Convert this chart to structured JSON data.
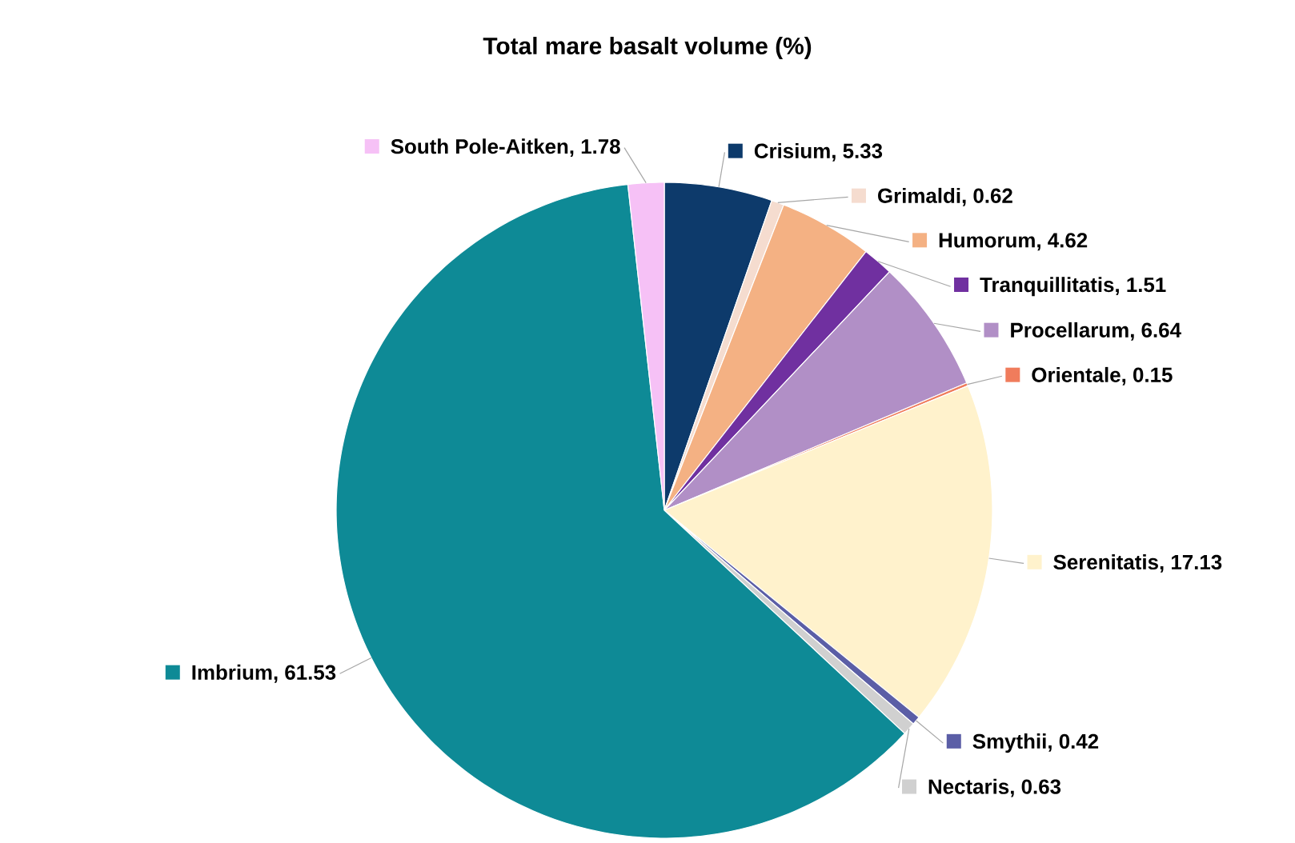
{
  "chart_data": {
    "type": "pie",
    "title": "Total mare basalt volume (%)",
    "categories": [
      "Crisium",
      "Grimaldi",
      "Humorum",
      "Tranquillitatis",
      "Procellarum",
      "Orientale",
      "Serenitatis",
      "Smythii",
      "Nectaris",
      "Imbrium",
      "South Pole-Aitken"
    ],
    "values": [
      5.33,
      0.62,
      4.62,
      1.51,
      6.64,
      0.15,
      17.13,
      0.42,
      0.63,
      61.53,
      1.78
    ],
    "colors": [
      "#0d3a6b",
      "#f5dccf",
      "#f4b183",
      "#7030a0",
      "#b18fc6",
      "#f07c5c",
      "#fff2cc",
      "#5b5ea6",
      "#d0d0d0",
      "#0e8a96",
      "#f6c1f6"
    ],
    "value_labels": [
      ", 5.33",
      ", 0.62",
      ", 4.62",
      ", 1.51",
      ", 6.64",
      ", 0.15",
      ", 17.13",
      ", 0.42",
      ", 0.63",
      ", 61.53",
      ", 1.78"
    ],
    "legend": "right"
  }
}
